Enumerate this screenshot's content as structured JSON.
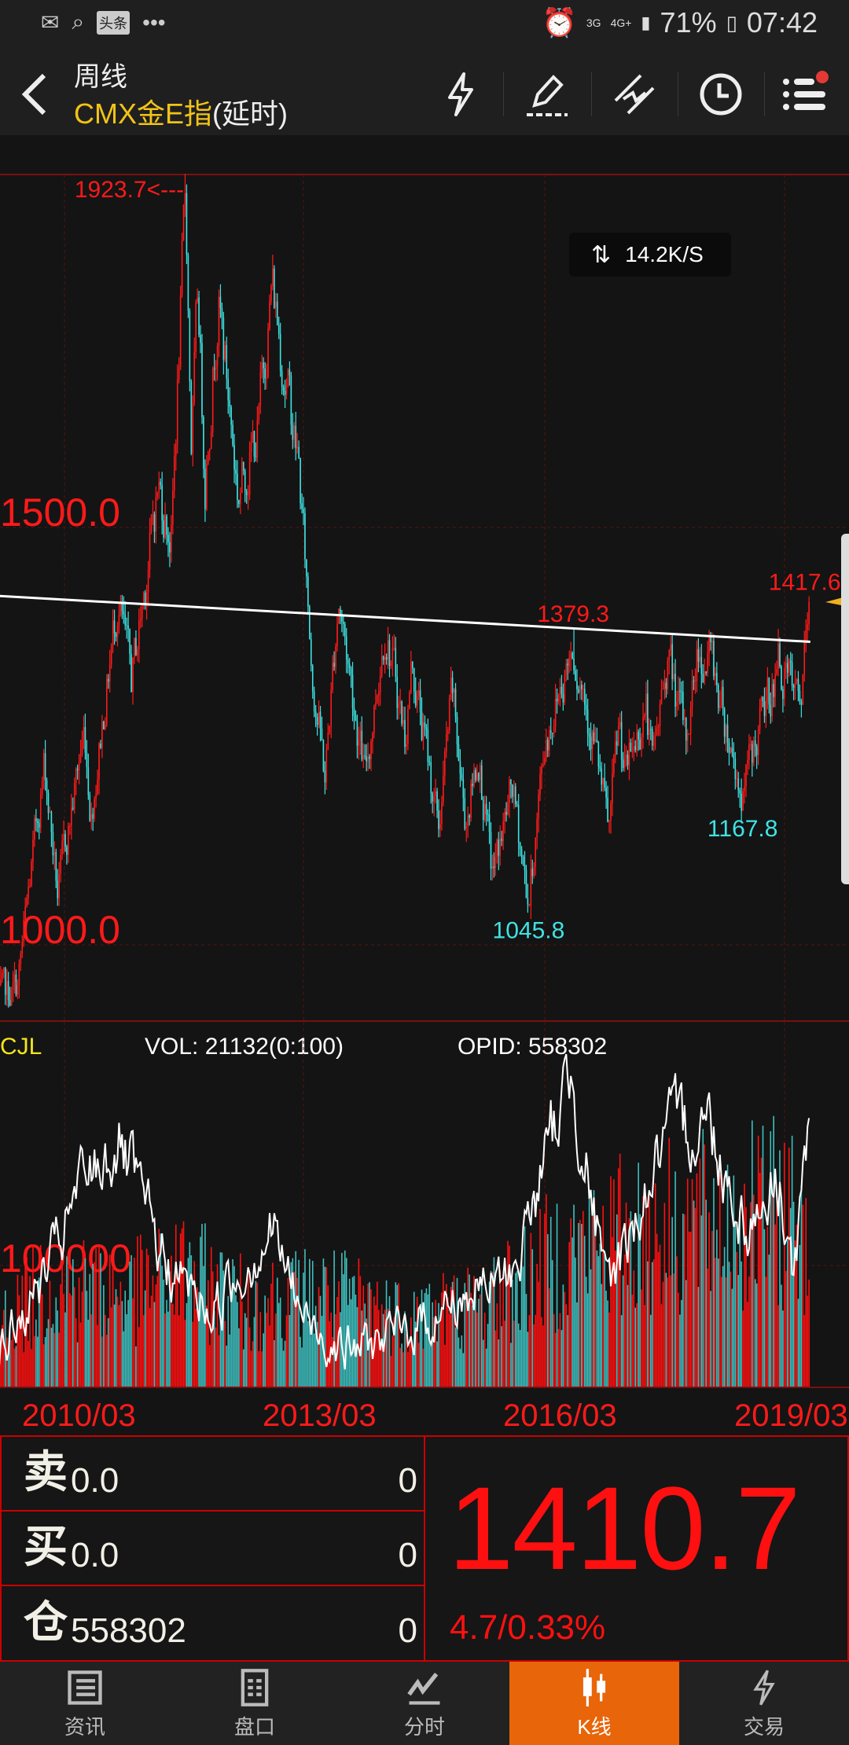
{
  "status_bar": {
    "network_1": "3G",
    "network_2": "4G+",
    "battery": "71%",
    "time": "07:42",
    "app_badge": "头条"
  },
  "header": {
    "period": "周线",
    "symbol": "CMX金E指",
    "suffix": "(延时)"
  },
  "toolbar": {
    "icons": [
      "lightning-icon",
      "draw-pencil-icon",
      "trendline-icon",
      "clock-icon",
      "menu-list-icon"
    ],
    "notification_dot_color": "#e53935"
  },
  "speed_badge": {
    "value": "14.2K/S"
  },
  "volume_panel": {
    "title": "CJL",
    "vol": "VOL: 21132(0:100)",
    "opid": "OPID: 558302"
  },
  "quote": {
    "sell_label": "卖",
    "sell_price": "0.0",
    "sell_qty": "0",
    "buy_label": "买",
    "buy_price": "0.0",
    "buy_qty": "0",
    "oi_label": "仓",
    "oi_value": "558302",
    "oi_qty": "0",
    "last": "1410.7",
    "change": "4.7/0.33%"
  },
  "nav": [
    {
      "label": "资讯",
      "icon": "news-icon"
    },
    {
      "label": "盘口",
      "icon": "orderbook-icon"
    },
    {
      "label": "分时",
      "icon": "intraday-chart-icon"
    },
    {
      "label": "K线",
      "icon": "candlestick-icon",
      "active": true
    },
    {
      "label": "交易",
      "icon": "trade-lightning-icon"
    }
  ],
  "colors": {
    "up": "#ff1a1a",
    "down": "#3fe3e3",
    "active_tab": "#e8650a",
    "symbol": "#f2c318"
  },
  "chart_data": [
    {
      "type": "candlestick",
      "period": "weekly",
      "y_ticks": [
        "1500.0",
        "1000.0"
      ],
      "y_tick_values": [
        1500,
        1000
      ],
      "x_ticks": [
        "2010/03",
        "2013/03",
        "2016/03",
        "2019/03"
      ],
      "annotations": [
        {
          "text": "1923.7<---",
          "date": "2011-09-05",
          "price": 1923.7,
          "kind": "high"
        },
        {
          "text": "1379.3",
          "date": "2016-07-05",
          "price": 1379.3,
          "kind": "high"
        },
        {
          "text": "1045.8",
          "date": "2015-12-15",
          "price": 1045.8,
          "kind": "low"
        },
        {
          "text": "1167.8",
          "date": "2018-08-16",
          "price": 1167.8,
          "kind": "low"
        },
        {
          "text": "1417.6",
          "date": "2019-06-20",
          "price": 1417.6,
          "kind": "high"
        }
      ],
      "trendline": [
        {
          "date": "2009-05",
          "price": 1418
        },
        {
          "date": "2019-06-20",
          "price": 1363
        }
      ],
      "last_close": 1410.7,
      "price_path": [
        [
          "2009-05",
          930
        ],
        [
          "2009-08",
          950
        ],
        [
          "2009-12",
          1220
        ],
        [
          "2010-02",
          1060
        ],
        [
          "2010-06",
          1260
        ],
        [
          "2010-07",
          1160
        ],
        [
          "2010-11",
          1420
        ],
        [
          "2011-01",
          1310
        ],
        [
          "2011-05",
          1550
        ],
        [
          "2011-07",
          1490
        ],
        [
          "2011-09-05",
          1900
        ],
        [
          "2011-10",
          1600
        ],
        [
          "2011-11",
          1780
        ],
        [
          "2011-12",
          1560
        ],
        [
          "2012-02",
          1780
        ],
        [
          "2012-05",
          1540
        ],
        [
          "2012-08",
          1620
        ],
        [
          "2012-10",
          1795
        ],
        [
          "2013-02",
          1580
        ],
        [
          "2013-04",
          1340
        ],
        [
          "2013-06",
          1200
        ],
        [
          "2013-08",
          1420
        ],
        [
          "2013-12",
          1200
        ],
        [
          "2014-03",
          1390
        ],
        [
          "2014-06",
          1250
        ],
        [
          "2014-07",
          1340
        ],
        [
          "2014-11",
          1140
        ],
        [
          "2015-01",
          1300
        ],
        [
          "2015-03",
          1150
        ],
        [
          "2015-05",
          1230
        ],
        [
          "2015-07",
          1080
        ],
        [
          "2015-10",
          1185
        ],
        [
          "2015-12-15",
          1050
        ],
        [
          "2016-03",
          1250
        ],
        [
          "2016-07-05",
          1365
        ],
        [
          "2016-10",
          1260
        ],
        [
          "2016-12-15",
          1130
        ],
        [
          "2017-02",
          1260
        ],
        [
          "2017-03",
          1200
        ],
        [
          "2017-06",
          1290
        ],
        [
          "2017-07",
          1210
        ],
        [
          "2017-09-08",
          1350
        ],
        [
          "2017-12",
          1240
        ],
        [
          "2018-01-25",
          1355
        ],
        [
          "2018-04",
          1340
        ],
        [
          "2018-08-16",
          1175
        ],
        [
          "2018-10",
          1230
        ],
        [
          "2019-02",
          1340
        ],
        [
          "2019-05",
          1275
        ],
        [
          "2019-06-20",
          1410.7
        ]
      ]
    },
    {
      "type": "bar",
      "title": "CJL",
      "y_ticks": [
        "100000"
      ],
      "y_tick_values": [
        100000
      ],
      "volume_level": [
        [
          "2009-05",
          60000
        ],
        [
          "2010-01",
          100000
        ],
        [
          "2011-01",
          90000
        ],
        [
          "2011-09",
          110000
        ],
        [
          "2012-06",
          80000
        ],
        [
          "2013-06",
          90000
        ],
        [
          "2014-06",
          70000
        ],
        [
          "2015-06",
          80000
        ],
        [
          "2016-06",
          130000
        ],
        [
          "2017-06",
          150000
        ],
        [
          "2018-06",
          160000
        ],
        [
          "2019-06",
          170000
        ]
      ],
      "opid_path": [
        [
          "2009-05",
          330000
        ],
        [
          "2010-01",
          430000
        ],
        [
          "2010-06",
          520000
        ],
        [
          "2010-11",
          560000
        ],
        [
          "2011-06",
          430000
        ],
        [
          "2012-01",
          380000
        ],
        [
          "2012-10",
          470000
        ],
        [
          "2013-03",
          370000
        ],
        [
          "2013-10",
          340000
        ],
        [
          "2014-06",
          360000
        ],
        [
          "2015-01",
          390000
        ],
        [
          "2015-10",
          420000
        ],
        [
          "2016-03",
          540000
        ],
        [
          "2016-07",
          640000
        ],
        [
          "2016-12",
          400000
        ],
        [
          "2017-09",
          560000
        ],
        [
          "2018-03",
          590000
        ],
        [
          "2018-09",
          470000
        ],
        [
          "2019-02",
          520000
        ],
        [
          "2019-04",
          420000
        ],
        [
          "2019-06-20",
          558302
        ]
      ]
    }
  ]
}
